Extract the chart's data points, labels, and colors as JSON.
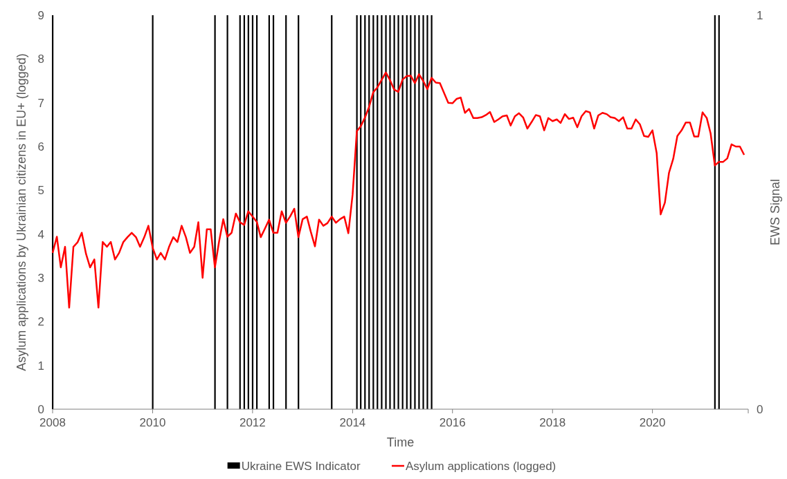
{
  "chart_data": {
    "type": "line",
    "xlabel": "Time",
    "ylabel": "Asylum applications by Ukrainian citizens in EU+ (logged)",
    "y2label": "EWS Signal",
    "xlim": [
      "2008-01",
      "2021-12"
    ],
    "xticks": [
      {
        "value": "2008",
        "label": "2008"
      },
      {
        "value": "2010",
        "label": "2010"
      },
      {
        "value": "2012",
        "label": "2012"
      },
      {
        "value": "2014",
        "label": "2014"
      },
      {
        "value": "2016",
        "label": "2016"
      },
      {
        "value": "2018",
        "label": "2018"
      },
      {
        "value": "2020",
        "label": "2020"
      }
    ],
    "ylim": [
      0,
      9
    ],
    "yticks": [
      0,
      1,
      2,
      3,
      4,
      5,
      6,
      7,
      8,
      9
    ],
    "y2lim": [
      0,
      1
    ],
    "y2ticks": [
      0,
      1
    ],
    "grid": false,
    "legend": "bottom",
    "series": [
      {
        "type": "bar",
        "axis": "y2",
        "name": "Ukraine EWS Indicator",
        "color": "#000000",
        "x": [
          "2008-01",
          "2010-01",
          "2011-04",
          "2011-07",
          "2011-10",
          "2011-11",
          "2011-12",
          "2012-01",
          "2012-02",
          "2012-05",
          "2012-06",
          "2012-09",
          "2012-12",
          "2013-08",
          "2014-02",
          "2014-03",
          "2014-04",
          "2014-05",
          "2014-06",
          "2014-07",
          "2014-08",
          "2014-09",
          "2014-10",
          "2014-11",
          "2014-12",
          "2015-01",
          "2015-02",
          "2015-03",
          "2015-04",
          "2015-05",
          "2015-06",
          "2015-07",
          "2015-08",
          "2021-04",
          "2021-05"
        ],
        "values": [
          1,
          1,
          1,
          1,
          1,
          1,
          1,
          1,
          1,
          1,
          1,
          1,
          1,
          1,
          1,
          1,
          1,
          1,
          1,
          1,
          1,
          1,
          1,
          1,
          1,
          1,
          1,
          1,
          1,
          1,
          1,
          1,
          1,
          1,
          1
        ]
      },
      {
        "name": "Asylum applications (logged)",
        "color": "#ff0000",
        "x": [
          "2008-01",
          "2008-02",
          "2008-03",
          "2008-04",
          "2008-05",
          "2008-06",
          "2008-07",
          "2008-08",
          "2008-09",
          "2008-10",
          "2008-11",
          "2008-12",
          "2009-01",
          "2009-02",
          "2009-03",
          "2009-04",
          "2009-05",
          "2009-06",
          "2009-07",
          "2009-08",
          "2009-09",
          "2009-10",
          "2009-11",
          "2009-12",
          "2010-01",
          "2010-02",
          "2010-03",
          "2010-04",
          "2010-05",
          "2010-06",
          "2010-07",
          "2010-08",
          "2010-09",
          "2010-10",
          "2010-11",
          "2010-12",
          "2011-01",
          "2011-02",
          "2011-03",
          "2011-04",
          "2011-05",
          "2011-06",
          "2011-07",
          "2011-08",
          "2011-09",
          "2011-10",
          "2011-11",
          "2011-12",
          "2012-01",
          "2012-02",
          "2012-03",
          "2012-04",
          "2012-05",
          "2012-06",
          "2012-07",
          "2012-08",
          "2012-09",
          "2012-10",
          "2012-11",
          "2012-12",
          "2013-01",
          "2013-02",
          "2013-03",
          "2013-04",
          "2013-05",
          "2013-06",
          "2013-07",
          "2013-08",
          "2013-09",
          "2013-10",
          "2013-11",
          "2013-12",
          "2014-01",
          "2014-02",
          "2014-03",
          "2014-04",
          "2014-05",
          "2014-06",
          "2014-07",
          "2014-08",
          "2014-09",
          "2014-10",
          "2014-11",
          "2014-12",
          "2015-01",
          "2015-02",
          "2015-03",
          "2015-04",
          "2015-05",
          "2015-06",
          "2015-07",
          "2015-08",
          "2015-09",
          "2015-10",
          "2015-11",
          "2015-12",
          "2016-01",
          "2016-02",
          "2016-03",
          "2016-04",
          "2016-05",
          "2016-06",
          "2016-07",
          "2016-08",
          "2016-09",
          "2016-10",
          "2016-11",
          "2016-12",
          "2017-01",
          "2017-02",
          "2017-03",
          "2017-04",
          "2017-05",
          "2017-06",
          "2017-07",
          "2017-08",
          "2017-09",
          "2017-10",
          "2017-11",
          "2017-12",
          "2018-01",
          "2018-02",
          "2018-03",
          "2018-04",
          "2018-05",
          "2018-06",
          "2018-07",
          "2018-08",
          "2018-09",
          "2018-10",
          "2018-11",
          "2018-12",
          "2019-01",
          "2019-02",
          "2019-03",
          "2019-04",
          "2019-05",
          "2019-06",
          "2019-07",
          "2019-08",
          "2019-09",
          "2019-10",
          "2019-11",
          "2019-12",
          "2020-01",
          "2020-02",
          "2020-03",
          "2020-04",
          "2020-05",
          "2020-06",
          "2020-07",
          "2020-08",
          "2020-09",
          "2020-10",
          "2020-11",
          "2020-12",
          "2021-01",
          "2021-02",
          "2021-03",
          "2021-04",
          "2021-05",
          "2021-06",
          "2021-07",
          "2021-08",
          "2021-09",
          "2021-10",
          "2021-11"
        ],
        "values": [
          3.57,
          3.94,
          3.24,
          3.71,
          2.32,
          3.71,
          3.81,
          4.03,
          3.55,
          3.24,
          3.42,
          2.32,
          3.82,
          3.71,
          3.82,
          3.42,
          3.57,
          3.82,
          3.93,
          4.03,
          3.93,
          3.71,
          3.93,
          4.19,
          3.69,
          3.42,
          3.57,
          3.42,
          3.71,
          3.93,
          3.82,
          4.19,
          3.93,
          3.57,
          3.71,
          4.27,
          3.0,
          4.11,
          4.11,
          3.24,
          3.82,
          4.34,
          3.94,
          4.03,
          4.47,
          4.27,
          4.21,
          4.52,
          4.4,
          4.28,
          3.93,
          4.13,
          4.33,
          4.03,
          4.03,
          4.52,
          4.26,
          4.4,
          4.58,
          3.93,
          4.34,
          4.4,
          4.06,
          3.72,
          4.33,
          4.19,
          4.25,
          4.4,
          4.26,
          4.34,
          4.4,
          4.02,
          4.9,
          6.35,
          6.46,
          6.66,
          6.9,
          7.24,
          7.35,
          7.52,
          7.69,
          7.52,
          7.3,
          7.25,
          7.53,
          7.61,
          7.62,
          7.45,
          7.65,
          7.5,
          7.31,
          7.57,
          7.46,
          7.45,
          7.22,
          7.0,
          6.99,
          7.09,
          7.12,
          6.77,
          6.86,
          6.65,
          6.65,
          6.67,
          6.72,
          6.79,
          6.56,
          6.62,
          6.69,
          6.71,
          6.48,
          6.69,
          6.76,
          6.66,
          6.41,
          6.56,
          6.72,
          6.69,
          6.37,
          6.65,
          6.58,
          6.62,
          6.54,
          6.74,
          6.63,
          6.66,
          6.44,
          6.69,
          6.81,
          6.78,
          6.41,
          6.71,
          6.77,
          6.74,
          6.67,
          6.65,
          6.58,
          6.67,
          6.41,
          6.41,
          6.62,
          6.51,
          6.24,
          6.22,
          6.37,
          5.85,
          4.45,
          4.72,
          5.4,
          5.72,
          6.24,
          6.37,
          6.55,
          6.55,
          6.23,
          6.23,
          6.78,
          6.65,
          6.3,
          5.57,
          5.65,
          5.65,
          5.73,
          6.05,
          6.0,
          6.0,
          5.81
        ]
      }
    ]
  }
}
